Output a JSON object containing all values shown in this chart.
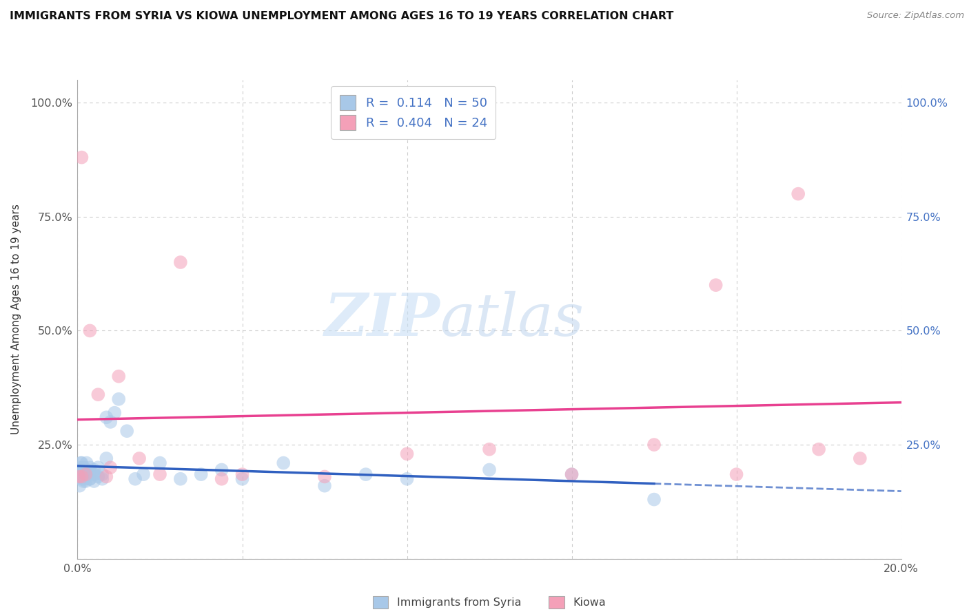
{
  "title": "IMMIGRANTS FROM SYRIA VS KIOWA UNEMPLOYMENT AMONG AGES 16 TO 19 YEARS CORRELATION CHART",
  "source": "Source: ZipAtlas.com",
  "ylabel": "Unemployment Among Ages 16 to 19 years",
  "xlim": [
    0.0,
    0.2
  ],
  "ylim": [
    0.0,
    1.05
  ],
  "x_ticks": [
    0.0,
    0.04,
    0.08,
    0.12,
    0.16,
    0.2
  ],
  "y_ticks": [
    0.0,
    0.25,
    0.5,
    0.75,
    1.0
  ],
  "syria_r": 0.114,
  "syria_n": 50,
  "kiowa_r": 0.404,
  "kiowa_n": 24,
  "syria_color": "#a8c8e8",
  "kiowa_color": "#f4a0b8",
  "syria_line_color": "#3060c0",
  "kiowa_line_color": "#e84090",
  "legend_label_syria": "Immigrants from Syria",
  "legend_label_kiowa": "Kiowa",
  "syria_x": [
    0.0003,
    0.0005,
    0.0005,
    0.0007,
    0.0008,
    0.001,
    0.001,
    0.001,
    0.0012,
    0.0013,
    0.0014,
    0.0015,
    0.0016,
    0.0017,
    0.002,
    0.002,
    0.002,
    0.0022,
    0.0025,
    0.003,
    0.003,
    0.003,
    0.003,
    0.004,
    0.004,
    0.004,
    0.005,
    0.005,
    0.006,
    0.006,
    0.007,
    0.007,
    0.008,
    0.009,
    0.01,
    0.012,
    0.014,
    0.016,
    0.02,
    0.025,
    0.03,
    0.035,
    0.04,
    0.05,
    0.06,
    0.07,
    0.08,
    0.1,
    0.12,
    0.14
  ],
  "syria_y": [
    0.18,
    0.2,
    0.16,
    0.19,
    0.21,
    0.175,
    0.19,
    0.21,
    0.18,
    0.2,
    0.17,
    0.185,
    0.2,
    0.175,
    0.18,
    0.195,
    0.17,
    0.21,
    0.185,
    0.175,
    0.19,
    0.2,
    0.175,
    0.185,
    0.195,
    0.17,
    0.18,
    0.2,
    0.185,
    0.175,
    0.22,
    0.31,
    0.3,
    0.32,
    0.35,
    0.28,
    0.175,
    0.185,
    0.21,
    0.175,
    0.185,
    0.195,
    0.175,
    0.21,
    0.16,
    0.185,
    0.175,
    0.195,
    0.185,
    0.13
  ],
  "kiowa_x": [
    0.0003,
    0.001,
    0.001,
    0.002,
    0.003,
    0.005,
    0.007,
    0.008,
    0.01,
    0.015,
    0.02,
    0.025,
    0.035,
    0.04,
    0.06,
    0.08,
    0.1,
    0.12,
    0.14,
    0.155,
    0.16,
    0.175,
    0.18,
    0.19
  ],
  "kiowa_y": [
    0.18,
    0.88,
    0.18,
    0.185,
    0.5,
    0.36,
    0.18,
    0.2,
    0.4,
    0.22,
    0.185,
    0.65,
    0.175,
    0.185,
    0.18,
    0.23,
    0.24,
    0.185,
    0.25,
    0.6,
    0.185,
    0.8,
    0.24,
    0.22
  ]
}
